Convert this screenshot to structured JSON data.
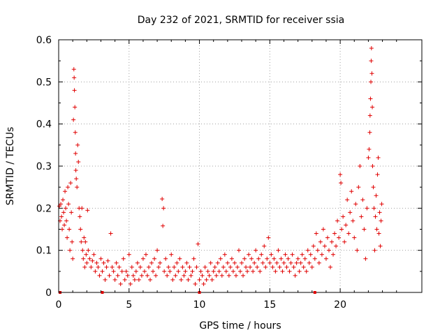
{
  "chart_data": {
    "type": "scatter",
    "title": "Day 232 of 2021, SRMTID for receiver ssia",
    "xlabel": "GPS time / hours",
    "ylabel": "SRMTID / TECUs",
    "xlim": [
      0,
      25.8
    ],
    "ylim": [
      0,
      0.6
    ],
    "xticks": [
      "0",
      "5",
      "10",
      "15",
      "20"
    ],
    "xtick_values": [
      0,
      5,
      10,
      15,
      20
    ],
    "yticks": [
      "0",
      "0.1",
      "0.2",
      "0.3",
      "0.4",
      "0.5",
      "0.6"
    ],
    "ytick_values": [
      0,
      0.1,
      0.2,
      0.3,
      0.4,
      0.5,
      0.6
    ],
    "grid": true,
    "marker": "plus",
    "color": "#e00000",
    "series": [
      {
        "name": "SRMTID",
        "points": [
          [
            0.05,
            0.205
          ],
          [
            0.1,
            0.17
          ],
          [
            0.15,
            0.21
          ],
          [
            0.2,
            0.18
          ],
          [
            0.25,
            0.15
          ],
          [
            0.3,
            0.22
          ],
          [
            0.35,
            0.19
          ],
          [
            0.4,
            0.16
          ],
          [
            0.45,
            0.24
          ],
          [
            0.5,
            0.2
          ],
          [
            0.55,
            0.17
          ],
          [
            0.6,
            0.13
          ],
          [
            0.65,
            0.25
          ],
          [
            0.7,
            0.21
          ],
          [
            0.75,
            0.15
          ],
          [
            0.8,
            0.1
          ],
          [
            0.85,
            0.26
          ],
          [
            0.9,
            0.19
          ],
          [
            0.95,
            0.12
          ],
          [
            1.0,
            0.08
          ],
          [
            1.05,
            0.41
          ],
          [
            1.08,
            0.53
          ],
          [
            1.1,
            0.51
          ],
          [
            1.12,
            0.48
          ],
          [
            1.15,
            0.44
          ],
          [
            1.18,
            0.38
          ],
          [
            1.2,
            0.33
          ],
          [
            1.22,
            0.29
          ],
          [
            1.25,
            0.27
          ],
          [
            1.3,
            0.25
          ],
          [
            1.35,
            0.35
          ],
          [
            1.4,
            0.31
          ],
          [
            1.45,
            0.2
          ],
          [
            1.5,
            0.18
          ],
          [
            1.55,
            0.15
          ],
          [
            1.6,
            0.12
          ],
          [
            1.65,
            0.2
          ],
          [
            1.7,
            0.1
          ],
          [
            1.75,
            0.08
          ],
          [
            1.8,
            0.13
          ],
          [
            1.85,
            0.06
          ],
          [
            1.9,
            0.12
          ],
          [
            1.95,
            0.09
          ],
          [
            2.0,
            0.07
          ],
          [
            2.05,
            0.195
          ],
          [
            2.1,
            0.1
          ],
          [
            2.2,
            0.08
          ],
          [
            2.3,
            0.06
          ],
          [
            2.4,
            0.075
          ],
          [
            2.5,
            0.09
          ],
          [
            2.6,
            0.05
          ],
          [
            2.7,
            0.07
          ],
          [
            2.8,
            0.06
          ],
          [
            2.9,
            0.04
          ],
          [
            3.0,
            0.08
          ],
          [
            3.1,
            0.05
          ],
          [
            3.2,
            0.07
          ],
          [
            3.3,
            0.03
          ],
          [
            3.4,
            0.06
          ],
          [
            3.5,
            0.075
          ],
          [
            3.6,
            0.04
          ],
          [
            3.7,
            0.14
          ],
          [
            3.8,
            0.06
          ],
          [
            3.9,
            0.05
          ],
          [
            4.0,
            0.03
          ],
          [
            4.1,
            0.07
          ],
          [
            4.2,
            0.04
          ],
          [
            4.3,
            0.06
          ],
          [
            4.4,
            0.02
          ],
          [
            4.5,
            0.05
          ],
          [
            4.6,
            0.08
          ],
          [
            4.7,
            0.03
          ],
          [
            4.8,
            0.05
          ],
          [
            4.9,
            0.04
          ],
          [
            5.0,
            0.09
          ],
          [
            5.1,
            0.02
          ],
          [
            5.2,
            0.06
          ],
          [
            5.3,
            0.04
          ],
          [
            5.4,
            0.03
          ],
          [
            5.5,
            0.05
          ],
          [
            5.6,
            0.07
          ],
          [
            5.7,
            0.03
          ],
          [
            5.8,
            0.06
          ],
          [
            5.9,
            0.04
          ],
          [
            6.0,
            0.08
          ],
          [
            6.1,
            0.05
          ],
          [
            6.2,
            0.09
          ],
          [
            6.3,
            0.04
          ],
          [
            6.4,
            0.06
          ],
          [
            6.5,
            0.03
          ],
          [
            6.6,
            0.07
          ],
          [
            6.7,
            0.05
          ],
          [
            6.8,
            0.08
          ],
          [
            6.9,
            0.04
          ],
          [
            7.0,
            0.1
          ],
          [
            7.1,
            0.06
          ],
          [
            7.2,
            0.07
          ],
          [
            7.35,
            0.222
          ],
          [
            7.4,
            0.158
          ],
          [
            7.45,
            0.2
          ],
          [
            7.5,
            0.05
          ],
          [
            7.6,
            0.08
          ],
          [
            7.7,
            0.04
          ],
          [
            7.8,
            0.06
          ],
          [
            7.9,
            0.05
          ],
          [
            8.0,
            0.09
          ],
          [
            8.1,
            0.03
          ],
          [
            8.2,
            0.06
          ],
          [
            8.3,
            0.04
          ],
          [
            8.4,
            0.07
          ],
          [
            8.5,
            0.05
          ],
          [
            8.6,
            0.08
          ],
          [
            8.7,
            0.03
          ],
          [
            8.8,
            0.06
          ],
          [
            8.9,
            0.04
          ],
          [
            9.0,
            0.05
          ],
          [
            9.1,
            0.07
          ],
          [
            9.2,
            0.03
          ],
          [
            9.3,
            0.06
          ],
          [
            9.4,
            0.04
          ],
          [
            9.5,
            0.05
          ],
          [
            9.6,
            0.08
          ],
          [
            9.7,
            0.02
          ],
          [
            9.8,
            0.06
          ],
          [
            9.9,
            0.115
          ],
          [
            10.0,
            0.03
          ],
          [
            10.1,
            0.05
          ],
          [
            10.2,
            0.04
          ],
          [
            10.3,
            0.02
          ],
          [
            10.4,
            0.06
          ],
          [
            10.5,
            0.03
          ],
          [
            10.6,
            0.05
          ],
          [
            10.7,
            0.04
          ],
          [
            10.8,
            0.07
          ],
          [
            10.9,
            0.03
          ],
          [
            11.0,
            0.05
          ],
          [
            11.1,
            0.06
          ],
          [
            11.2,
            0.04
          ],
          [
            11.3,
            0.07
          ],
          [
            11.4,
            0.05
          ],
          [
            11.5,
            0.08
          ],
          [
            11.6,
            0.04
          ],
          [
            11.7,
            0.06
          ],
          [
            11.8,
            0.09
          ],
          [
            11.9,
            0.05
          ],
          [
            12.0,
            0.07
          ],
          [
            12.1,
            0.04
          ],
          [
            12.2,
            0.06
          ],
          [
            12.3,
            0.08
          ],
          [
            12.4,
            0.05
          ],
          [
            12.5,
            0.07
          ],
          [
            12.6,
            0.04
          ],
          [
            12.7,
            0.06
          ],
          [
            12.8,
            0.1
          ],
          [
            12.9,
            0.05
          ],
          [
            13.0,
            0.07
          ],
          [
            13.1,
            0.04
          ],
          [
            13.2,
            0.08
          ],
          [
            13.3,
            0.06
          ],
          [
            13.4,
            0.05
          ],
          [
            13.5,
            0.09
          ],
          [
            13.6,
            0.06
          ],
          [
            13.7,
            0.08
          ],
          [
            13.8,
            0.05
          ],
          [
            13.9,
            0.07
          ],
          [
            14.0,
            0.1
          ],
          [
            14.1,
            0.06
          ],
          [
            14.2,
            0.08
          ],
          [
            14.3,
            0.05
          ],
          [
            14.4,
            0.09
          ],
          [
            14.5,
            0.07
          ],
          [
            14.6,
            0.11
          ],
          [
            14.7,
            0.06
          ],
          [
            14.8,
            0.08
          ],
          [
            14.9,
            0.13
          ],
          [
            15.0,
            0.07
          ],
          [
            15.1,
            0.09
          ],
          [
            15.2,
            0.06
          ],
          [
            15.3,
            0.08
          ],
          [
            15.4,
            0.05
          ],
          [
            15.5,
            0.07
          ],
          [
            15.6,
            0.1
          ],
          [
            15.7,
            0.06
          ],
          [
            15.8,
            0.08
          ],
          [
            15.9,
            0.05
          ],
          [
            16.0,
            0.07
          ],
          [
            16.1,
            0.09
          ],
          [
            16.2,
            0.06
          ],
          [
            16.3,
            0.08
          ],
          [
            16.4,
            0.05
          ],
          [
            16.5,
            0.07
          ],
          [
            16.6,
            0.09
          ],
          [
            16.7,
            0.06
          ],
          [
            16.8,
            0.04
          ],
          [
            16.9,
            0.07
          ],
          [
            17.0,
            0.08
          ],
          [
            17.1,
            0.05
          ],
          [
            17.2,
            0.07
          ],
          [
            17.3,
            0.09
          ],
          [
            17.4,
            0.06
          ],
          [
            17.5,
            0.08
          ],
          [
            17.6,
            0.05
          ],
          [
            17.7,
            0.1
          ],
          [
            17.8,
            0.07
          ],
          [
            17.9,
            0.09
          ],
          [
            18.0,
            0.06
          ],
          [
            18.1,
            0.11
          ],
          [
            18.2,
            0.08
          ],
          [
            18.3,
            0.14
          ],
          [
            18.4,
            0.1
          ],
          [
            18.5,
            0.07
          ],
          [
            18.6,
            0.12
          ],
          [
            18.7,
            0.09
          ],
          [
            18.8,
            0.15
          ],
          [
            18.9,
            0.11
          ],
          [
            19.0,
            0.08
          ],
          [
            19.1,
            0.13
          ],
          [
            19.2,
            0.1
          ],
          [
            19.3,
            0.06
          ],
          [
            19.4,
            0.12
          ],
          [
            19.5,
            0.09
          ],
          [
            19.6,
            0.14
          ],
          [
            19.7,
            0.11
          ],
          [
            19.8,
            0.17
          ],
          [
            19.9,
            0.13
          ],
          [
            20.0,
            0.28
          ],
          [
            20.05,
            0.26
          ],
          [
            20.1,
            0.15
          ],
          [
            20.2,
            0.18
          ],
          [
            20.3,
            0.12
          ],
          [
            20.4,
            0.16
          ],
          [
            20.5,
            0.22
          ],
          [
            20.6,
            0.14
          ],
          [
            20.7,
            0.19
          ],
          [
            20.8,
            0.24
          ],
          [
            20.9,
            0.17
          ],
          [
            21.0,
            0.13
          ],
          [
            21.1,
            0.21
          ],
          [
            21.2,
            0.1
          ],
          [
            21.3,
            0.25
          ],
          [
            21.4,
            0.3
          ],
          [
            21.5,
            0.18
          ],
          [
            21.6,
            0.22
          ],
          [
            21.7,
            0.15
          ],
          [
            21.8,
            0.08
          ],
          [
            21.9,
            0.2
          ],
          [
            22.0,
            0.32
          ],
          [
            22.05,
            0.34
          ],
          [
            22.1,
            0.38
          ],
          [
            22.12,
            0.42
          ],
          [
            22.15,
            0.46
          ],
          [
            22.18,
            0.5
          ],
          [
            22.2,
            0.55
          ],
          [
            22.22,
            0.58
          ],
          [
            22.25,
            0.52
          ],
          [
            22.28,
            0.44
          ],
          [
            22.3,
            0.3
          ],
          [
            22.35,
            0.25
          ],
          [
            22.4,
            0.2
          ],
          [
            22.45,
            0.1
          ],
          [
            22.5,
            0.18
          ],
          [
            22.55,
            0.23
          ],
          [
            22.6,
            0.15
          ],
          [
            22.65,
            0.28
          ],
          [
            22.7,
            0.32
          ],
          [
            22.75,
            0.14
          ],
          [
            22.8,
            0.19
          ],
          [
            22.85,
            0.11
          ],
          [
            22.9,
            0.17
          ],
          [
            22.95,
            0.21
          ]
        ]
      }
    ],
    "axis_markers": [
      0.1,
      3.1,
      10.0,
      18.2
    ]
  }
}
